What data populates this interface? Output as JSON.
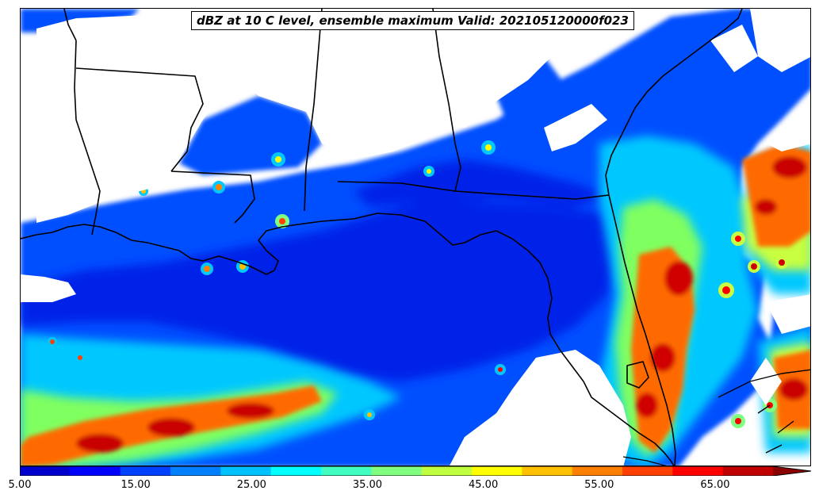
{
  "map": {
    "title": "dBZ at 10 C level, ensemble maximum Valid: 202105120000f023",
    "variable": "dBZ at 10 C level",
    "statistic": "ensemble maximum",
    "valid": "202105120000f023",
    "region": "Southeastern United States / Gulf of Mexico",
    "base_color": "#ffffff",
    "boundary_color": "#000000"
  },
  "colorbar": {
    "min": 5,
    "max": 70,
    "extend": "max",
    "labels": [
      "5.00",
      "15.00",
      "25.00",
      "35.00",
      "45.00",
      "55.00",
      "65.00"
    ],
    "colors": [
      "#0000cd",
      "#0000ff",
      "#0040ff",
      "#0080ff",
      "#00c0ff",
      "#00ffff",
      "#40ffc0",
      "#80ff80",
      "#c0ff40",
      "#ffff00",
      "#ffc000",
      "#ff8000",
      "#ff4000",
      "#ff0000",
      "#c00000",
      "#8b0000"
    ]
  }
}
